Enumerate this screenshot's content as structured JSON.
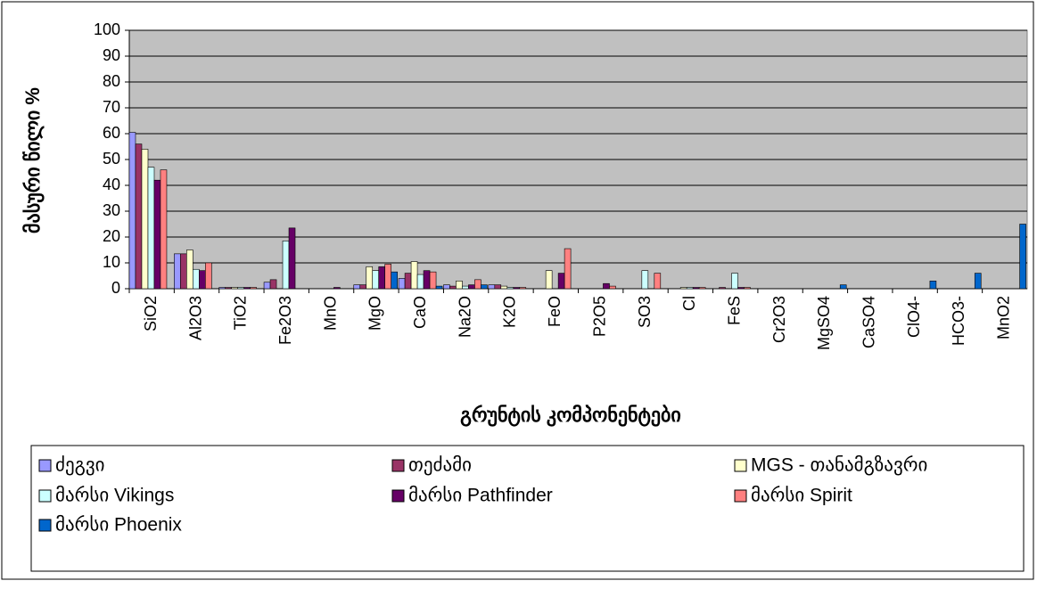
{
  "chart_data": {
    "type": "bar",
    "y_label": "მასური წილი %",
    "x_label": "გრუნტის კომპონენტები",
    "categories": [
      "SiO2",
      "Al2O3",
      "TiO2",
      "Fe2O3",
      "MnO",
      "MgO",
      "CaO",
      "Na2O",
      "K2O",
      "FeO",
      "P2O5",
      "SO3",
      "Cl",
      "FeS",
      "Cr2O3",
      "MgSO4",
      "CaSO4",
      "ClO4-",
      "HCO3-",
      "MnO2"
    ],
    "series": [
      {
        "name": "ძეგვი",
        "color": "#9999ff",
        "values": [
          60.5,
          13.5,
          0.5,
          2.5,
          0,
          1.5,
          4,
          1.5,
          1.5,
          0,
          0,
          0,
          0,
          0,
          0,
          0,
          0,
          0,
          0,
          0
        ]
      },
      {
        "name": "თეძამი",
        "color": "#993366",
        "values": [
          56,
          13.5,
          0.5,
          3.5,
          0,
          1.5,
          6,
          1,
          1.5,
          0,
          0,
          0,
          0,
          0.5,
          0,
          0,
          0,
          0,
          0,
          0
        ]
      },
      {
        "name": "MGS - თანამგზავრი",
        "color": "#ffffcc",
        "values": [
          54,
          15,
          0.5,
          0,
          0,
          8.5,
          10.5,
          3,
          1,
          7,
          0,
          0,
          0.5,
          0,
          0,
          0,
          0,
          0,
          0,
          0
        ]
      },
      {
        "name": "მარსი Vikings",
        "color": "#ccffff",
        "values": [
          47,
          7.5,
          0.5,
          18.5,
          0,
          7,
          5.5,
          1,
          0.5,
          0,
          0,
          7,
          0.5,
          6,
          0,
          0,
          0,
          0,
          0,
          0
        ]
      },
      {
        "name": "მარსი Pathfinder",
        "color": "#660066",
        "values": [
          42,
          7,
          0.5,
          23.5,
          0.5,
          8.5,
          7,
          1.5,
          0.5,
          6,
          2,
          0,
          0.5,
          0.5,
          0,
          0,
          0,
          0,
          0,
          0
        ]
      },
      {
        "name": "მარსი Spirit",
        "color": "#ff8080",
        "values": [
          46,
          10,
          0.5,
          0,
          0,
          9.5,
          6.5,
          3.5,
          0.5,
          15.5,
          1,
          6,
          0.5,
          0.5,
          0,
          0,
          0,
          0,
          0,
          0
        ]
      },
      {
        "name": "მარსი Phoenix",
        "color": "#0066cc",
        "values": [
          0,
          0,
          0,
          0,
          0,
          6.5,
          1,
          1.5,
          0,
          0,
          0,
          0,
          0,
          0,
          0,
          1.5,
          0,
          3,
          6,
          25
        ]
      }
    ],
    "ylim": [
      0,
      100
    ],
    "yticks": [
      0,
      10,
      20,
      30,
      40,
      50,
      60,
      70,
      80,
      90,
      100
    ],
    "grid": true,
    "plot_background": "#c0c0c0"
  }
}
